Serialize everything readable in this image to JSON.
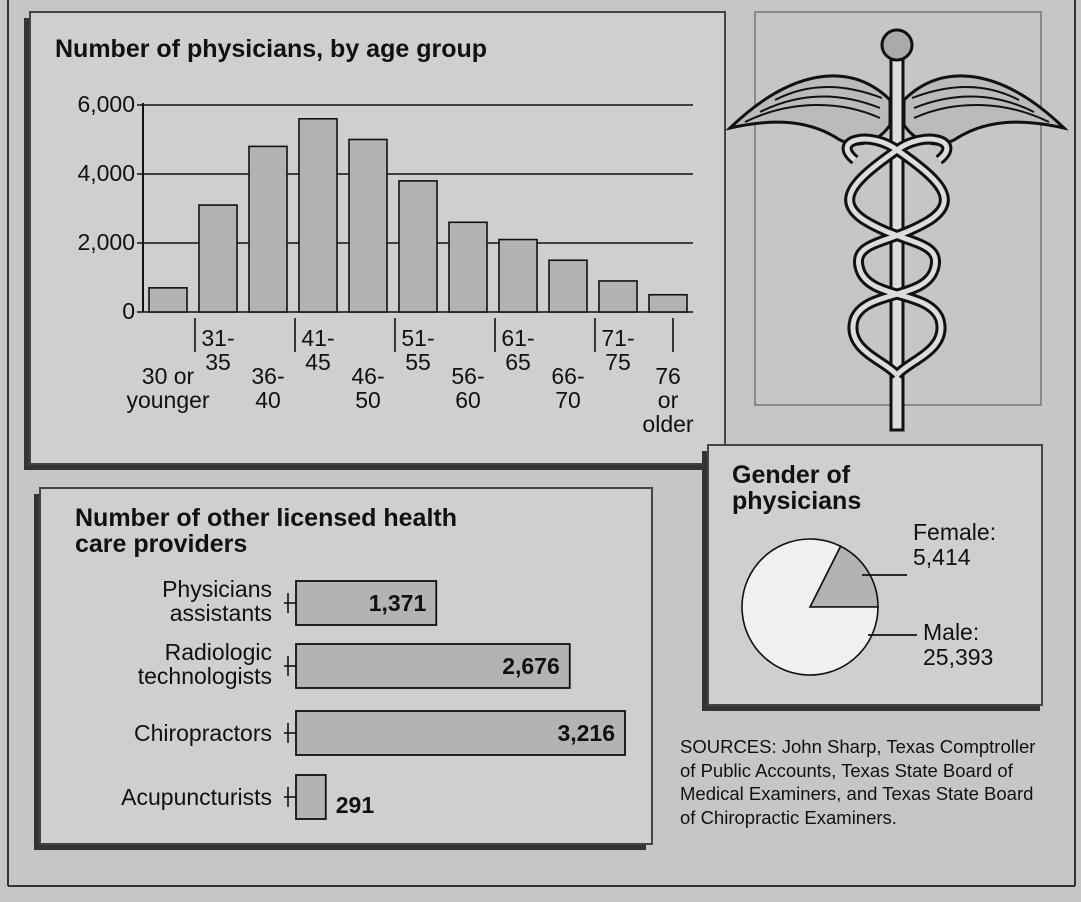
{
  "chart_data": [
    {
      "type": "bar",
      "title": "Number of physicians, by age group",
      "categories": [
        "30 or younger",
        "31-35",
        "36-40",
        "41-45",
        "46-50",
        "51-55",
        "56-60",
        "61-65",
        "66-70",
        "71-75",
        "76 or older"
      ],
      "values": [
        700,
        3100,
        4800,
        5600,
        5000,
        3800,
        2600,
        2100,
        1500,
        900,
        500
      ],
      "color": "#b3b3b3",
      "ylim": [
        0,
        6000
      ],
      "yticks": [
        0,
        {
          "value": 2000,
          "label": "2,000"
        },
        {
          "value": 4000,
          "label": "4,000"
        },
        {
          "value": 6000,
          "label": "6,000"
        }
      ],
      "grid": true
    },
    {
      "type": "hbar",
      "title": "Number of other licensed health care providers",
      "categories": [
        "Physicians assistants",
        "Radiologic technologists",
        "Chiropractors",
        "Acupuncturists"
      ],
      "values": [
        1371,
        2676,
        3216,
        291
      ],
      "value_labels": [
        "1,371",
        "2,676",
        "3,216",
        "291"
      ],
      "color": "#b3b3b3"
    },
    {
      "type": "pie",
      "title": "Gender of physicians",
      "categories": [
        "Female:",
        "Male:"
      ],
      "values": [
        5414,
        25393
      ],
      "value_labels": [
        "5,414",
        "25,393"
      ],
      "colors": [
        "#b3b3b3",
        "#f0f0f0"
      ]
    }
  ],
  "sources": "SOURCES: John Sharp, Texas Comptroller of Public Accounts, Texas State Board of Medical Examiners, and Texas State Board of Chiropractic Examiners."
}
